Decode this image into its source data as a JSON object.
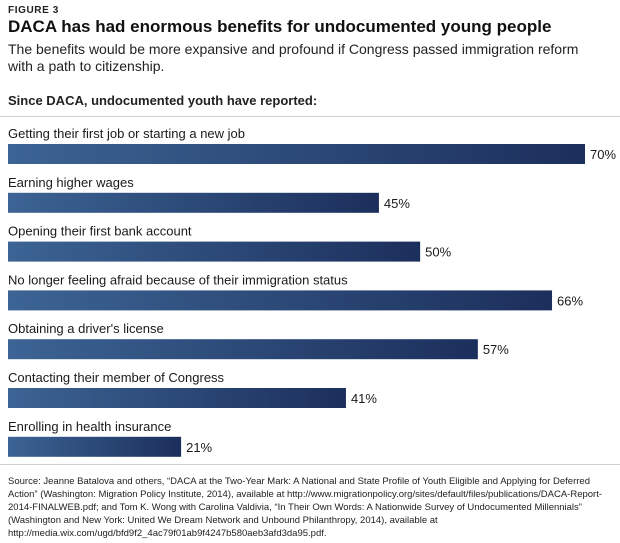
{
  "header": {
    "figure_label": "FIGURE 3",
    "title": "DACA has had enormous benefits for undocumented young people",
    "subtitle": "The benefits would be more expansive and profound if Congress passed immigration reform with a path to citizenship.",
    "section_heading": "Since DACA, undocumented youth have reported:"
  },
  "chart_data": {
    "type": "bar",
    "orientation": "horizontal",
    "categories": [
      "Getting their first job or starting a new job",
      "Earning higher wages",
      "Opening their first bank account",
      "No longer feeling afraid because of their immigration status",
      "Obtaining a driver's license",
      "Contacting their member of Congress",
      "Enrolling in health insurance"
    ],
    "values": [
      70,
      45,
      50,
      66,
      57,
      41,
      21
    ],
    "value_labels": [
      "70%",
      "45%",
      "50%",
      "66%",
      "57%",
      "41%",
      "21%"
    ],
    "xlim": [
      0,
      70
    ],
    "grid": false,
    "legend": "none",
    "bar_gradient": [
      "#3c6494",
      "#1c2f5c"
    ]
  },
  "footer": {
    "source": "Source: Jeanne Batalova and others, “DACA at the Two-Year Mark: A National and State Profile of Youth Eligible and Applying for Deferred Action” (Washington: Migration Policy Institute, 2014), available at http://www.migrationpolicy.org/sites/default/files/publications/DACA-Report-2014-FINALWEB.pdf; and Tom K. Wong with Carolina Valdivia, “In Their Own Words: A Nationwide Survey of Undocumented Millennials” (Washington and New York: United We Dream Network and Unbound Philanthropy, 2014), available at http://media.wix.com/ugd/bfd9f2_4ac79f01ab9f4247b580aeb3afd3da95.pdf."
  }
}
